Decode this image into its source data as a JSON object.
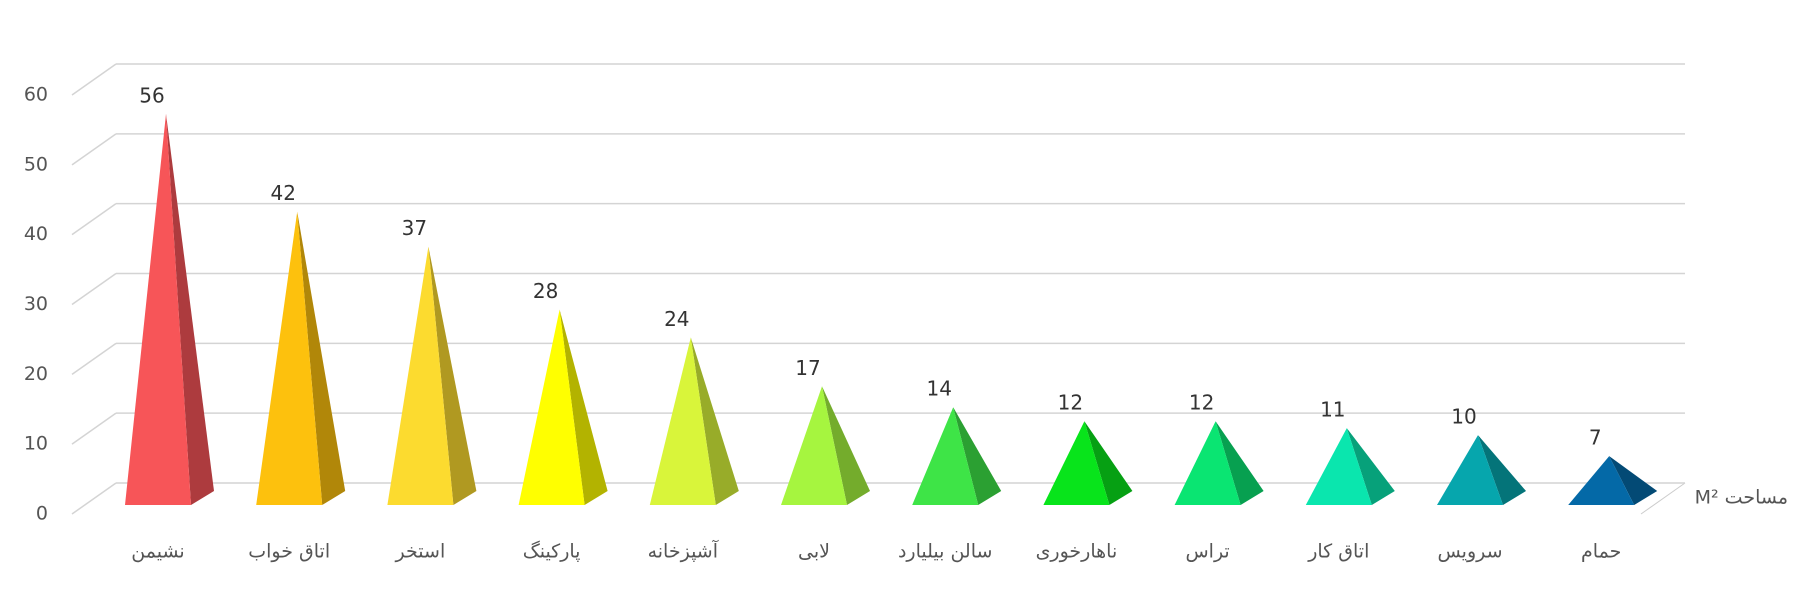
{
  "chart_data": {
    "type": "pyramid",
    "axis_label": "مساحت M²",
    "categories": [
      "نشیمن",
      "اتاق خواب",
      "استخر",
      "پارکینگ",
      "آشپزخانه",
      "لابی",
      "سالن بیلیارد",
      "ناهارخوری",
      "تراس",
      "اتاق کار",
      "سرویس",
      "حمام"
    ],
    "values": [
      56,
      42,
      37,
      28,
      24,
      17,
      14,
      12,
      12,
      11,
      10,
      7
    ],
    "colors": [
      "#f75558",
      "#fdc10d",
      "#fcdb2f",
      "#ffff00",
      "#d9f53a",
      "#a6f53f",
      "#3ee447",
      "#08e41b",
      "#0ae572",
      "#0ae6ae",
      "#06a6ad",
      "#0469a7"
    ],
    "ylim": [
      0,
      60
    ],
    "yticks": [
      0,
      10,
      20,
      30,
      40,
      50,
      60
    ],
    "grid": true
  }
}
